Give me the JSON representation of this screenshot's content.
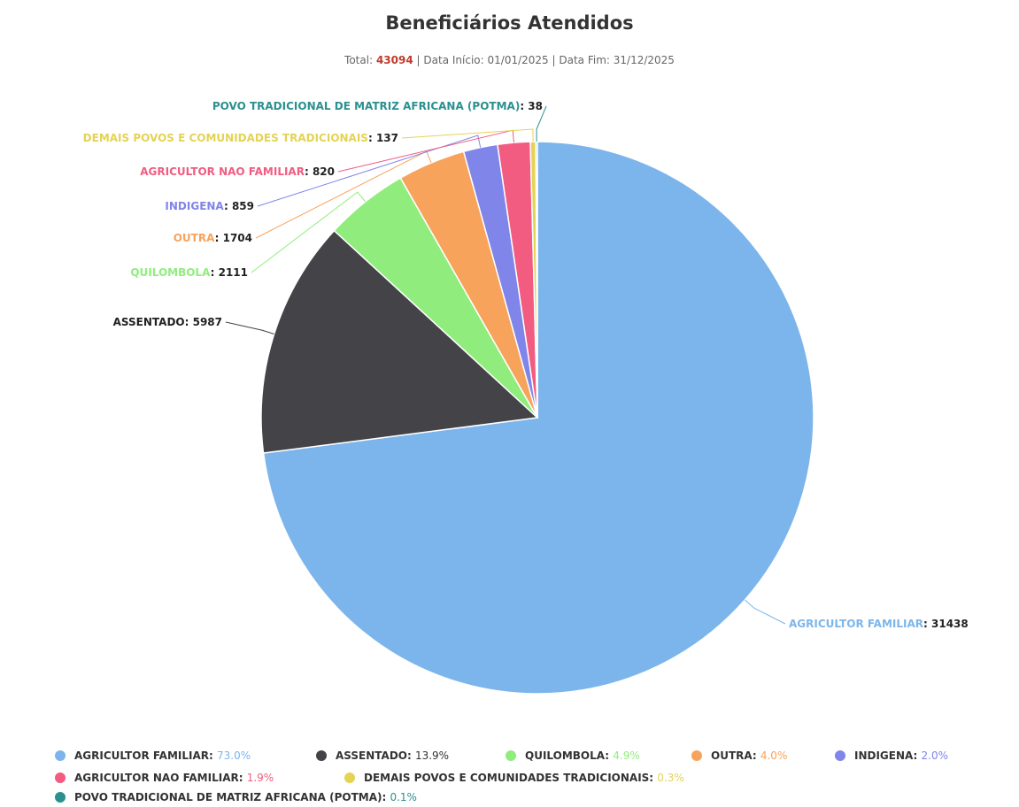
{
  "chart_data": {
    "type": "pie",
    "title": "Beneficiários Atendidos",
    "subtitle": {
      "total_label": "Total:",
      "total_value": "43094",
      "sep1": "|",
      "start_label": "Data Início:",
      "start_value": "01/01/2025",
      "sep2": "|",
      "end_label": "Data Fim:",
      "end_value": "31/12/2025"
    },
    "slices": [
      {
        "name": "AGRICULTOR FAMILIAR",
        "value": 31438,
        "percent": "73.0%",
        "color": "#7cb5ec"
      },
      {
        "name": "ASSENTADO",
        "value": 5987,
        "percent": "13.9%",
        "color": "#434348"
      },
      {
        "name": "QUILOMBOLA",
        "value": 2111,
        "percent": "4.9%",
        "color": "#90ed7d"
      },
      {
        "name": "OUTRA",
        "value": 1704,
        "percent": "4.0%",
        "color": "#f7a35c"
      },
      {
        "name": "INDIGENA",
        "value": 859,
        "percent": "2.0%",
        "color": "#8085e9"
      },
      {
        "name": "AGRICULTOR NAO FAMILIAR",
        "value": 820,
        "percent": "1.9%",
        "color": "#f15c80"
      },
      {
        "name": "DEMAIS POVOS E COMUNIDADES TRADICIONAIS",
        "value": 137,
        "percent": "0.3%",
        "color": "#e4d354"
      },
      {
        "name": "POVO TRADICIONAL DE MATRIZ AFRICANA (POTMA)",
        "value": 38,
        "percent": "0.1%",
        "color": "#2b908f"
      }
    ],
    "legend_placement": "bottom"
  }
}
